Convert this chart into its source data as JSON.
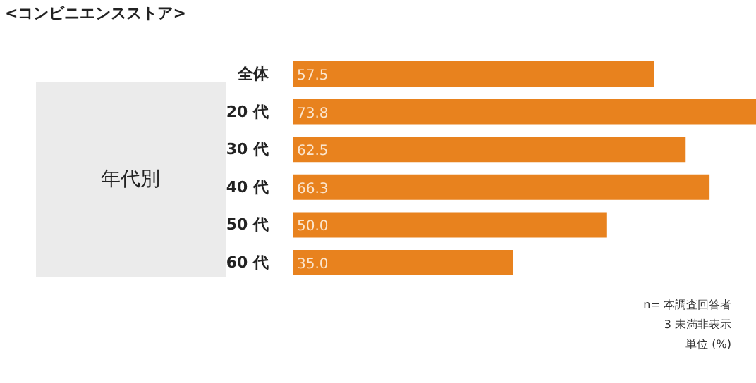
{
  "chart_data": {
    "type": "bar",
    "orientation": "horizontal",
    "title": "<コンビニエンスストア>",
    "ylabel": "年代別",
    "categories": [
      "全体",
      "20 代",
      "30 代",
      "40 代",
      "50 代",
      "60 代"
    ],
    "values": [
      57.5,
      73.8,
      62.5,
      66.3,
      50.0,
      35.0
    ],
    "value_labels": [
      "57.5",
      "73.8",
      "62.5",
      "66.3",
      "50.0",
      "35.0"
    ],
    "color": "#e8821e",
    "grid": false,
    "annotations": [
      "n= 本調査回答者",
      "3 未満非表示",
      "単位 (%)"
    ]
  }
}
